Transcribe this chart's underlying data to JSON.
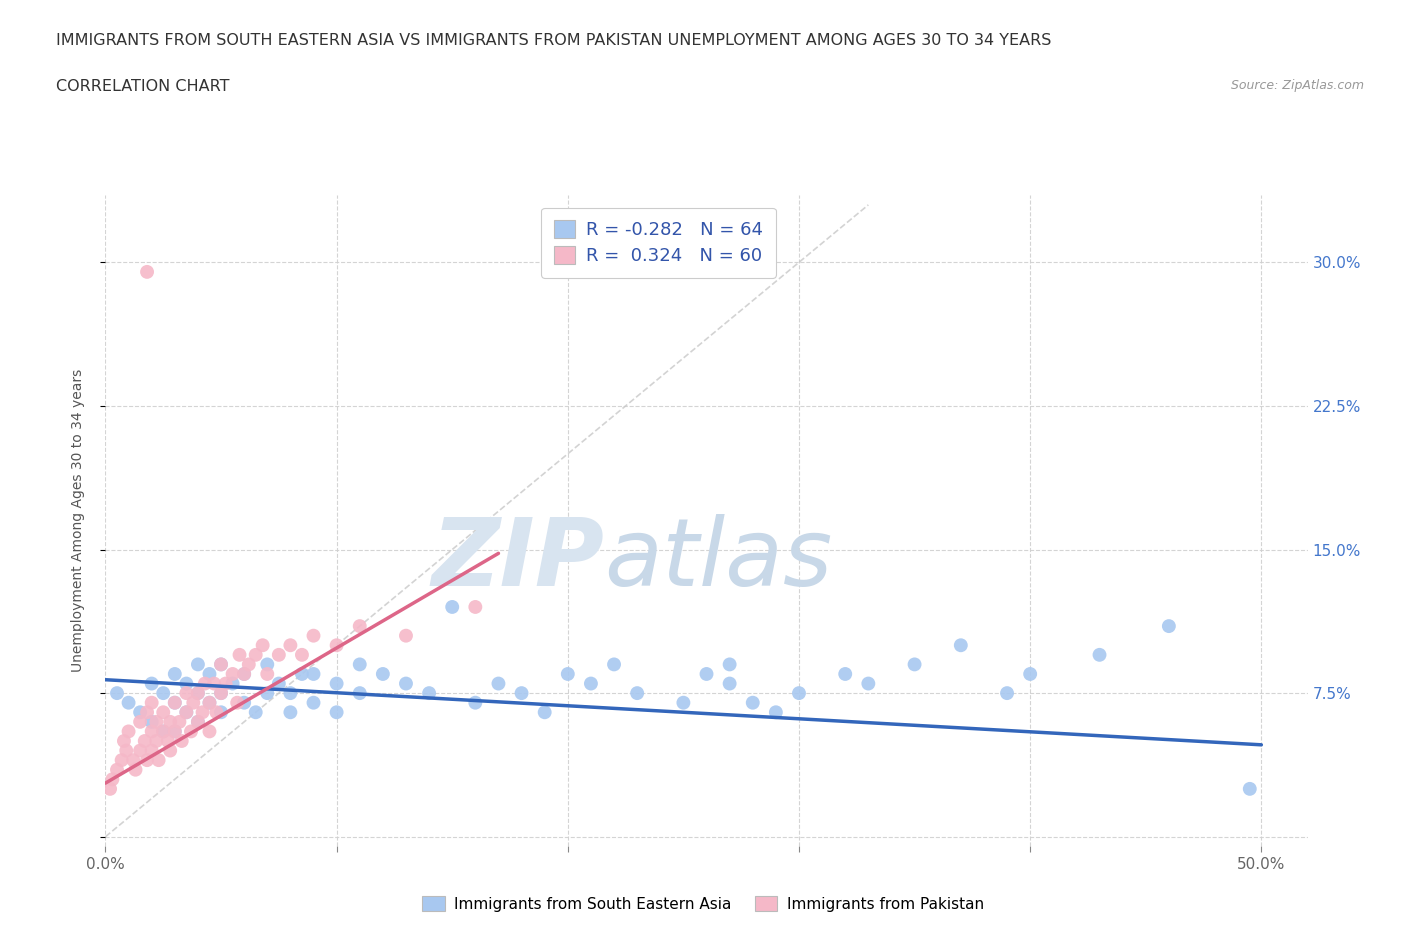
{
  "title_line1": "IMMIGRANTS FROM SOUTH EASTERN ASIA VS IMMIGRANTS FROM PAKISTAN UNEMPLOYMENT AMONG AGES 30 TO 34 YEARS",
  "title_line2": "CORRELATION CHART",
  "source_text": "Source: ZipAtlas.com",
  "ylabel": "Unemployment Among Ages 30 to 34 years",
  "xlim": [
    0.0,
    0.52
  ],
  "ylim": [
    -0.005,
    0.335
  ],
  "xticks": [
    0.0,
    0.1,
    0.2,
    0.3,
    0.4,
    0.5
  ],
  "xticklabels": [
    "0.0%",
    "",
    "",
    "",
    "",
    "50.0%"
  ],
  "yticks": [
    0.0,
    0.075,
    0.15,
    0.225,
    0.3
  ],
  "yticklabels": [
    "",
    "7.5%",
    "15.0%",
    "22.5%",
    "30.0%"
  ],
  "grid_color": "#d0d0d0",
  "background_color": "#ffffff",
  "watermark_zip": "ZIP",
  "watermark_atlas": "atlas",
  "legend_R1": "-0.282",
  "legend_N1": "64",
  "legend_R2": " 0.324",
  "legend_N2": "60",
  "color_sea": "#a8c8f0",
  "color_pak": "#f5b8c8",
  "line_color_sea": "#3366bb",
  "line_color_pak": "#dd6688",
  "line_color_diag": "#c8c8c8",
  "title_fontsize": 11.5,
  "source_fontsize": 9,
  "axis_label_fontsize": 10,
  "tick_fontsize": 11,
  "legend_fontsize": 13,
  "sea_scatter_x": [
    0.005,
    0.01,
    0.015,
    0.02,
    0.02,
    0.025,
    0.025,
    0.03,
    0.03,
    0.03,
    0.035,
    0.035,
    0.04,
    0.04,
    0.04,
    0.045,
    0.045,
    0.05,
    0.05,
    0.05,
    0.055,
    0.06,
    0.06,
    0.065,
    0.07,
    0.07,
    0.075,
    0.08,
    0.08,
    0.085,
    0.09,
    0.09,
    0.1,
    0.1,
    0.11,
    0.11,
    0.12,
    0.13,
    0.14,
    0.15,
    0.16,
    0.17,
    0.18,
    0.19,
    0.2,
    0.21,
    0.22,
    0.23,
    0.25,
    0.26,
    0.27,
    0.27,
    0.28,
    0.29,
    0.3,
    0.32,
    0.33,
    0.35,
    0.37,
    0.39,
    0.4,
    0.43,
    0.46,
    0.495
  ],
  "sea_scatter_y": [
    0.075,
    0.07,
    0.065,
    0.08,
    0.06,
    0.075,
    0.055,
    0.085,
    0.07,
    0.055,
    0.08,
    0.065,
    0.09,
    0.075,
    0.06,
    0.07,
    0.085,
    0.065,
    0.075,
    0.09,
    0.08,
    0.07,
    0.085,
    0.065,
    0.075,
    0.09,
    0.08,
    0.065,
    0.075,
    0.085,
    0.07,
    0.085,
    0.08,
    0.065,
    0.075,
    0.09,
    0.085,
    0.08,
    0.075,
    0.12,
    0.07,
    0.08,
    0.075,
    0.065,
    0.085,
    0.08,
    0.09,
    0.075,
    0.07,
    0.085,
    0.08,
    0.09,
    0.07,
    0.065,
    0.075,
    0.085,
    0.08,
    0.09,
    0.1,
    0.075,
    0.085,
    0.095,
    0.11,
    0.025
  ],
  "pak_scatter_x": [
    0.002,
    0.003,
    0.005,
    0.007,
    0.008,
    0.009,
    0.01,
    0.012,
    0.013,
    0.015,
    0.015,
    0.017,
    0.018,
    0.018,
    0.02,
    0.02,
    0.02,
    0.022,
    0.022,
    0.023,
    0.025,
    0.025,
    0.027,
    0.028,
    0.028,
    0.03,
    0.03,
    0.032,
    0.033,
    0.035,
    0.035,
    0.037,
    0.038,
    0.04,
    0.04,
    0.042,
    0.043,
    0.045,
    0.045,
    0.047,
    0.048,
    0.05,
    0.05,
    0.052,
    0.055,
    0.057,
    0.058,
    0.06,
    0.062,
    0.065,
    0.068,
    0.07,
    0.075,
    0.08,
    0.085,
    0.09,
    0.1,
    0.11,
    0.13,
    0.16
  ],
  "pak_scatter_y": [
    0.025,
    0.03,
    0.035,
    0.04,
    0.05,
    0.045,
    0.055,
    0.04,
    0.035,
    0.045,
    0.06,
    0.05,
    0.04,
    0.065,
    0.045,
    0.055,
    0.07,
    0.05,
    0.06,
    0.04,
    0.055,
    0.065,
    0.05,
    0.06,
    0.045,
    0.055,
    0.07,
    0.06,
    0.05,
    0.065,
    0.075,
    0.055,
    0.07,
    0.06,
    0.075,
    0.065,
    0.08,
    0.07,
    0.055,
    0.08,
    0.065,
    0.075,
    0.09,
    0.08,
    0.085,
    0.07,
    0.095,
    0.085,
    0.09,
    0.095,
    0.1,
    0.085,
    0.095,
    0.1,
    0.095,
    0.105,
    0.1,
    0.11,
    0.105,
    0.12
  ],
  "pak_outlier_x": [
    0.018
  ],
  "pak_outlier_y": [
    0.295
  ],
  "sea_trend_x": [
    0.0,
    0.5
  ],
  "sea_trend_y": [
    0.082,
    0.048
  ],
  "pak_trend_x": [
    0.0,
    0.17
  ],
  "pak_trend_y": [
    0.028,
    0.148
  ],
  "diag_line_x": [
    0.0,
    0.33
  ],
  "diag_line_y": [
    0.0,
    0.33
  ]
}
